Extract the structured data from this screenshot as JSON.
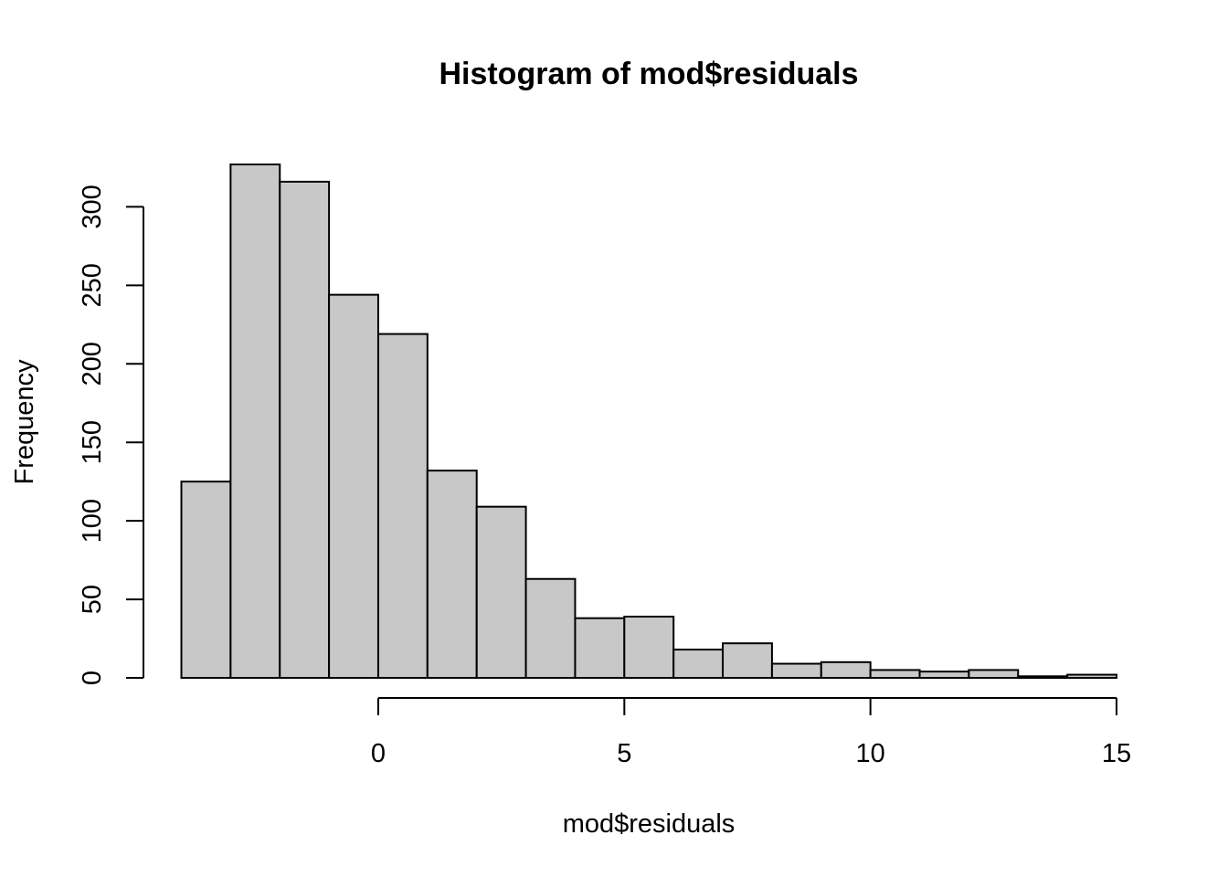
{
  "chart_data": {
    "type": "bar",
    "title": "Histogram of mod$residuals",
    "xlabel": "mod$residuals",
    "ylabel": "Frequency",
    "bins": [
      {
        "start": -4,
        "end": -3,
        "count": 125
      },
      {
        "start": -3,
        "end": -2,
        "count": 327
      },
      {
        "start": -2,
        "end": -1,
        "count": 316
      },
      {
        "start": -1,
        "end": 0,
        "count": 244
      },
      {
        "start": 0,
        "end": 1,
        "count": 219
      },
      {
        "start": 1,
        "end": 2,
        "count": 132
      },
      {
        "start": 2,
        "end": 3,
        "count": 109
      },
      {
        "start": 3,
        "end": 4,
        "count": 63
      },
      {
        "start": 4,
        "end": 5,
        "count": 38
      },
      {
        "start": 5,
        "end": 6,
        "count": 39
      },
      {
        "start": 6,
        "end": 7,
        "count": 18
      },
      {
        "start": 7,
        "end": 8,
        "count": 22
      },
      {
        "start": 8,
        "end": 9,
        "count": 9
      },
      {
        "start": 9,
        "end": 10,
        "count": 10
      },
      {
        "start": 10,
        "end": 11,
        "count": 5
      },
      {
        "start": 11,
        "end": 12,
        "count": 4
      },
      {
        "start": 12,
        "end": 13,
        "count": 5
      },
      {
        "start": 13,
        "end": 14,
        "count": 1
      },
      {
        "start": 14,
        "end": 15,
        "count": 2
      }
    ],
    "xticks": [
      0,
      5,
      10,
      15
    ],
    "yticks": [
      0,
      50,
      100,
      150,
      200,
      250,
      300
    ],
    "xlim": [
      -4,
      15
    ],
    "ylim": [
      0,
      327
    ],
    "grid": false,
    "colors": {
      "bar_fill": "#c8c8c8",
      "bar_stroke": "#000000"
    }
  }
}
